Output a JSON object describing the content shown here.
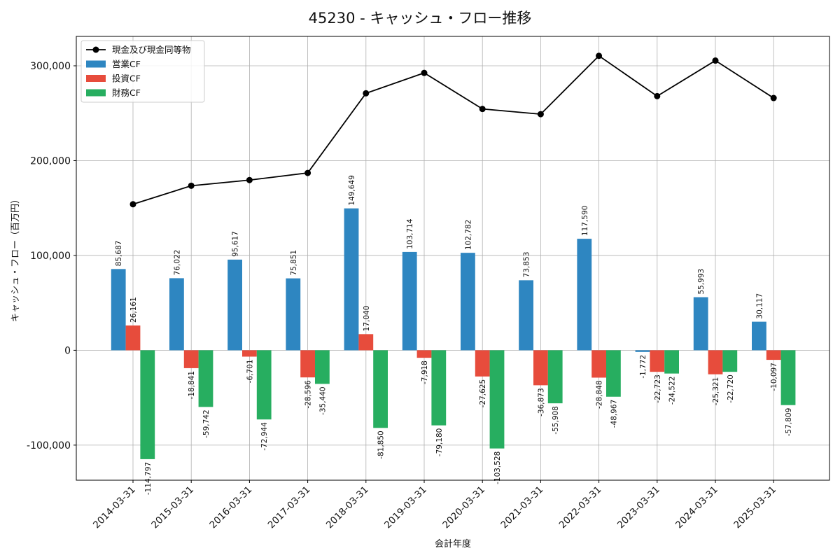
{
  "chart_data": {
    "type": "bar",
    "title": "45230 - キャッシュ・フロー推移",
    "xlabel": "会計年度",
    "ylabel": "キャッシュ・フロー（百万円）",
    "ylim": [
      -137000,
      331000
    ],
    "yticks": [
      -100000,
      0,
      100000,
      200000,
      300000
    ],
    "ytick_labels": [
      "-100,000",
      "0",
      "100,000",
      "200,000",
      "300,000"
    ],
    "grid": true,
    "legend_position": "top-left",
    "categories": [
      "2014-03-31",
      "2015-03-31",
      "2016-03-31",
      "2017-03-31",
      "2018-03-31",
      "2019-03-31",
      "2020-03-31",
      "2021-03-31",
      "2022-03-31",
      "2023-03-31",
      "2024-03-31",
      "2025-03-31"
    ],
    "series": [
      {
        "name": "営業CF",
        "type": "bar",
        "color": "#2e86c1",
        "values": [
          85687,
          76022,
          95617,
          75851,
          149649,
          103714,
          102782,
          73853,
          117590,
          -1772,
          55993,
          30117
        ],
        "labels": [
          "85,687",
          "76,022",
          "95,617",
          "75,851",
          "149,649",
          "103,714",
          "102,782",
          "73,853",
          "117,590",
          "-1,772",
          "55,993",
          "30,117"
        ]
      },
      {
        "name": "投資CF",
        "type": "bar",
        "color": "#e74c3c",
        "values": [
          26161,
          -18841,
          -6701,
          -28596,
          17040,
          -7918,
          -27625,
          -36873,
          -28848,
          -22723,
          -25321,
          -10097
        ],
        "labels": [
          "26,161",
          "-18,841",
          "-6,701",
          "-28,596",
          "17,040",
          "-7,918",
          "-27,625",
          "-36,873",
          "-28,848",
          "-22,723",
          "-25,321",
          "-10,097"
        ]
      },
      {
        "name": "財務CF",
        "type": "bar",
        "color": "#27ae60",
        "values": [
          -114797,
          -59742,
          -72944,
          -35440,
          -81850,
          -79180,
          -103528,
          -55908,
          -48967,
          -24522,
          -22720,
          -57809
        ],
        "labels": [
          "-114,797",
          "-59,742",
          "-72,944",
          "-35,440",
          "-81,850",
          "-79,180",
          "-103,528",
          "-55,908",
          "-48,967",
          "-24,522",
          "-22,720",
          "-57,809"
        ]
      },
      {
        "name": "現金及び現金同等物",
        "type": "line",
        "color": "#000000",
        "values": [
          154000,
          173500,
          179500,
          187000,
          271000,
          292500,
          254500,
          249000,
          310500,
          268000,
          305500,
          266000
        ]
      }
    ]
  }
}
